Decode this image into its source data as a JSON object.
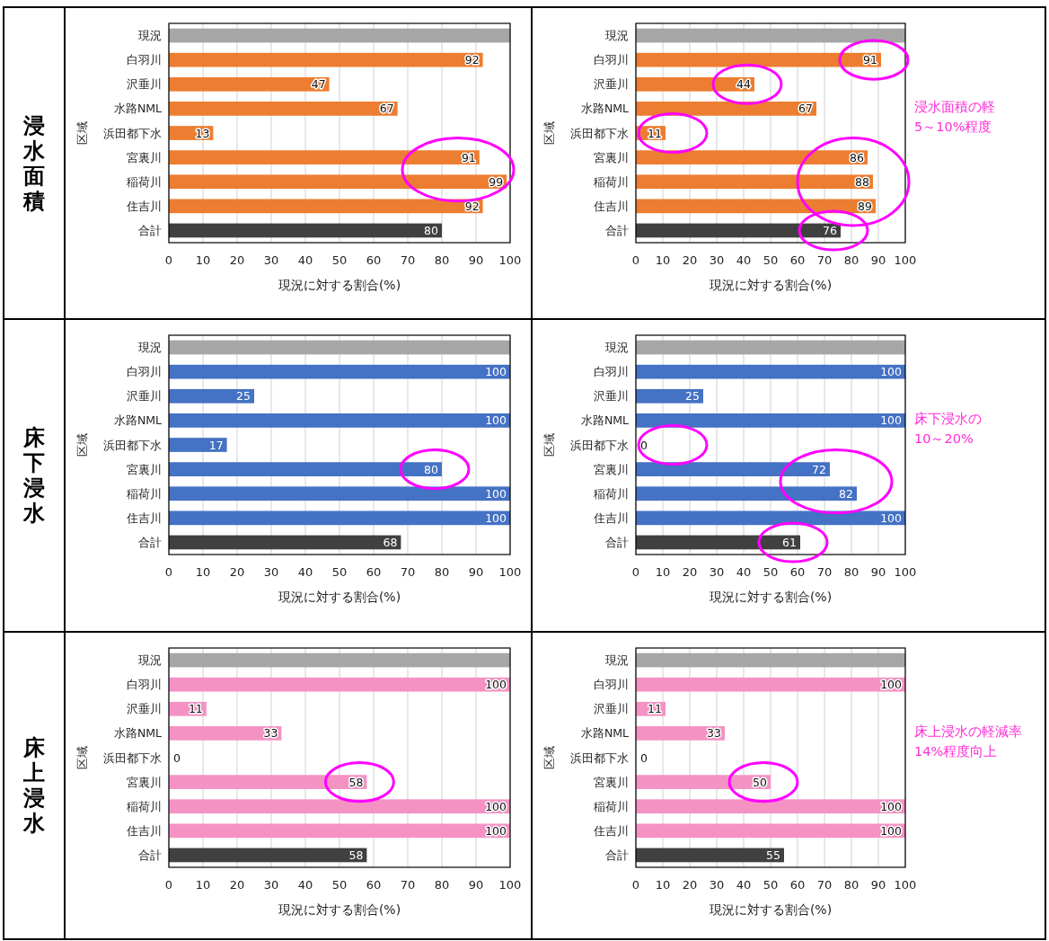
{
  "chart_data": [
    {
      "type": "bar",
      "orientation": "horizontal",
      "title": "浸水面積",
      "categories": [
        "現況",
        "白羽川",
        "沢垂川",
        "水路NML",
        "浜田都下水",
        "宮裏川",
        "稲荷川",
        "住吉川",
        "合計"
      ],
      "values": [
        100,
        92,
        47,
        67,
        13,
        91,
        99,
        92,
        80
      ],
      "colors": [
        "#a6a6a6",
        "#ed7d31",
        "#ed7d31",
        "#ed7d31",
        "#ed7d31",
        "#ed7d31",
        "#ed7d31",
        "#ed7d31",
        "#404040"
      ],
      "value_labels": [
        null,
        "92",
        "47",
        "67",
        "13",
        "91",
        "99",
        "92",
        "80"
      ],
      "xlim": [
        0,
        100
      ],
      "xticks": [
        0,
        10,
        20,
        30,
        40,
        50,
        60,
        70,
        80,
        90,
        100
      ],
      "xlabel": "現況に対する割合(%)",
      "ylabel": "区域",
      "grid": "x"
    },
    {
      "type": "bar",
      "orientation": "horizontal",
      "categories": [
        "現況",
        "白羽川",
        "沢垂川",
        "水路NML",
        "浜田都下水",
        "宮裏川",
        "稲荷川",
        "住吉川",
        "合計"
      ],
      "values": [
        100,
        91,
        44,
        67,
        11,
        86,
        88,
        89,
        76
      ],
      "colors": [
        "#a6a6a6",
        "#ed7d31",
        "#ed7d31",
        "#ed7d31",
        "#ed7d31",
        "#ed7d31",
        "#ed7d31",
        "#ed7d31",
        "#404040"
      ],
      "value_labels": [
        null,
        "91",
        "44",
        "67",
        "11",
        "86",
        "88",
        "89",
        "76"
      ],
      "xlim": [
        0,
        100
      ],
      "xticks": [
        0,
        10,
        20,
        30,
        40,
        50,
        60,
        70,
        80,
        90,
        100
      ],
      "xlabel": "現況に対する割合(%)",
      "ylabel": "区域",
      "grid": "x",
      "annotations": [
        "浸水面積の軽",
        "5～10%程度"
      ]
    },
    {
      "type": "bar",
      "orientation": "horizontal",
      "title": "床下浸水",
      "categories": [
        "現況",
        "白羽川",
        "沢垂川",
        "水路NML",
        "浜田都下水",
        "宮裏川",
        "稲荷川",
        "住吉川",
        "合計"
      ],
      "values": [
        100,
        100,
        25,
        100,
        17,
        80,
        100,
        100,
        68
      ],
      "colors": [
        "#a6a6a6",
        "#4472c4",
        "#4472c4",
        "#4472c4",
        "#4472c4",
        "#4472c4",
        "#4472c4",
        "#4472c4",
        "#404040"
      ],
      "value_labels": [
        null,
        "100",
        "25",
        "100",
        "17",
        "80",
        "100",
        "100",
        "68"
      ],
      "xlim": [
        0,
        100
      ],
      "xticks": [
        0,
        10,
        20,
        30,
        40,
        50,
        60,
        70,
        80,
        90,
        100
      ],
      "xlabel": "現況に対する割合(%)",
      "ylabel": "区域",
      "grid": "x"
    },
    {
      "type": "bar",
      "orientation": "horizontal",
      "categories": [
        "現況",
        "白羽川",
        "沢垂川",
        "水路NML",
        "浜田都下水",
        "宮裏川",
        "稲荷川",
        "住吉川",
        "合計"
      ],
      "values": [
        100,
        100,
        25,
        100,
        0,
        72,
        82,
        100,
        61
      ],
      "colors": [
        "#a6a6a6",
        "#4472c4",
        "#4472c4",
        "#4472c4",
        "#4472c4",
        "#4472c4",
        "#4472c4",
        "#4472c4",
        "#404040"
      ],
      "value_labels": [
        null,
        "100",
        "25",
        "100",
        "0",
        "72",
        "82",
        "100",
        "61"
      ],
      "xlim": [
        0,
        100
      ],
      "xticks": [
        0,
        10,
        20,
        30,
        40,
        50,
        60,
        70,
        80,
        90,
        100
      ],
      "xlabel": "現況に対する割合(%)",
      "ylabel": "区域",
      "grid": "x",
      "annotations": [
        "床下浸水の",
        "10～20%"
      ]
    },
    {
      "type": "bar",
      "orientation": "horizontal",
      "title": "床上浸水",
      "categories": [
        "現況",
        "白羽川",
        "沢垂川",
        "水路NML",
        "浜田都下水",
        "宮裏川",
        "稲荷川",
        "住吉川",
        "合計"
      ],
      "values": [
        100,
        100,
        11,
        33,
        0,
        58,
        100,
        100,
        58
      ],
      "colors": [
        "#a6a6a6",
        "#f592c4",
        "#f592c4",
        "#f592c4",
        "#f592c4",
        "#f592c4",
        "#f592c4",
        "#f592c4",
        "#404040"
      ],
      "value_labels": [
        null,
        "100",
        "11",
        "33",
        "0",
        "58",
        "100",
        "100",
        "58"
      ],
      "xlim": [
        0,
        100
      ],
      "xticks": [
        0,
        10,
        20,
        30,
        40,
        50,
        60,
        70,
        80,
        90,
        100
      ],
      "xlabel": "現況に対する割合(%)",
      "ylabel": "区域",
      "grid": "x"
    },
    {
      "type": "bar",
      "orientation": "horizontal",
      "categories": [
        "現況",
        "白羽川",
        "沢垂川",
        "水路NML",
        "浜田都下水",
        "宮裏川",
        "稲荷川",
        "住吉川",
        "合計"
      ],
      "values": [
        100,
        100,
        11,
        33,
        0,
        50,
        100,
        100,
        55
      ],
      "colors": [
        "#a6a6a6",
        "#f592c4",
        "#f592c4",
        "#f592c4",
        "#f592c4",
        "#f592c4",
        "#f592c4",
        "#f592c4",
        "#404040"
      ],
      "value_labels": [
        null,
        "100",
        "11",
        "33",
        "0",
        "50",
        "100",
        "100",
        "55"
      ],
      "xlim": [
        0,
        100
      ],
      "xticks": [
        0,
        10,
        20,
        30,
        40,
        50,
        60,
        70,
        80,
        90,
        100
      ],
      "xlabel": "現況に対する割合(%)",
      "ylabel": "区域",
      "grid": "x",
      "annotations": [
        "床上浸水の軽減率",
        "14%程度向上"
      ]
    }
  ]
}
